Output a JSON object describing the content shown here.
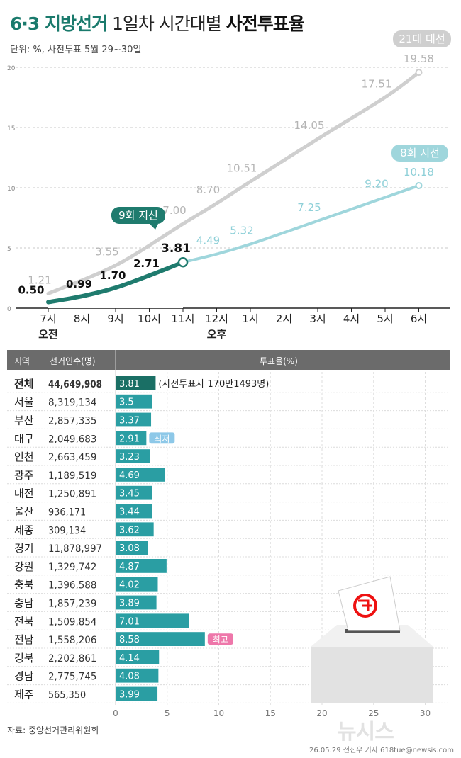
{
  "header": {
    "title_part1": "6·3 지방선거",
    "title_part2": "1일차 시간대별",
    "title_part3": "사전투표율",
    "unit": "단위: %, 사전투표 5월 29~30일"
  },
  "colors": {
    "accent": "#1a7a6c",
    "nineth": "#1f7b6e",
    "eighth": "#9fd6dc",
    "twentyfirst": "#cfcfcf",
    "bar": "#2a9ea3",
    "bar_top": "#1a6f65",
    "label_min": "#8dc8e8",
    "label_max": "#ee77aa"
  },
  "chart_data": [
    {
      "type": "line",
      "x": [
        "7시",
        "8시",
        "9시",
        "10시",
        "11시",
        "12시",
        "1시",
        "2시",
        "3시",
        "4시",
        "5시",
        "6시"
      ],
      "x_sublabels": {
        "7시": "오전",
        "12시": "오후"
      },
      "ylim": [
        0,
        20
      ],
      "yticks": [
        0,
        5,
        10,
        15,
        20
      ],
      "grid": true,
      "series": [
        {
          "name": "21대 대선",
          "values": [
            1.21,
            null,
            3.55,
            null,
            7.0,
            8.7,
            10.51,
            null,
            14.05,
            null,
            17.51,
            19.58
          ],
          "color": "#cfcfcf"
        },
        {
          "name": "8회 지선",
          "values": [
            null,
            null,
            null,
            null,
            null,
            4.49,
            5.32,
            null,
            7.25,
            null,
            9.2,
            10.18
          ],
          "color": "#9fd6dc"
        },
        {
          "name": "9회 지선",
          "values": [
            0.5,
            0.99,
            1.7,
            2.71,
            3.81,
            null,
            null,
            null,
            null,
            null,
            null,
            null
          ],
          "color": "#1f7b6e"
        }
      ]
    },
    {
      "type": "bar",
      "orientation": "horizontal",
      "columns": {
        "region": "지역",
        "voters": "선거인수(명)",
        "rate": "투표율(%)"
      },
      "categories": [
        "전체",
        "서울",
        "부산",
        "대구",
        "인천",
        "광주",
        "대전",
        "울산",
        "세종",
        "경기",
        "강원",
        "충북",
        "충남",
        "전북",
        "전남",
        "경북",
        "경남",
        "제주"
      ],
      "voters": [
        "44,649,908",
        "8,319,134",
        "2,857,335",
        "2,049,683",
        "2,663,459",
        "1,189,519",
        "1,250,891",
        "936,171",
        "309,134",
        "11,878,997",
        "1,329,742",
        "1,396,588",
        "1,857,239",
        "1,509,854",
        "1,558,206",
        "2,202,861",
        "2,775,745",
        "565,350"
      ],
      "values": [
        3.81,
        3.5,
        3.37,
        2.91,
        3.23,
        4.69,
        3.45,
        3.44,
        3.62,
        3.08,
        4.87,
        4.02,
        3.89,
        7.01,
        8.58,
        4.14,
        4.08,
        3.99
      ],
      "value_labels": [
        "3.81",
        "3.5",
        "3.37",
        "2.91",
        "3.23",
        "4.69",
        "3.45",
        "3.44",
        "3.62",
        "3.08",
        "4.87",
        "4.02",
        "3.89",
        "7.01",
        "8.58",
        "4.14",
        "4.08",
        "3.99"
      ],
      "annotations": {
        "전체": "(사전투표자 170만1493명)",
        "대구": "최저",
        "전남": "최고"
      },
      "xlim": [
        0,
        30
      ],
      "xticks": [
        0,
        5,
        10,
        15,
        20,
        25,
        30
      ],
      "grid": true
    }
  ],
  "footer": {
    "source": "자료: 중앙선거관리위원회",
    "credit": "26.05.29 전진우 기자 618tue@newsis.com",
    "logo": "뉴시스"
  }
}
